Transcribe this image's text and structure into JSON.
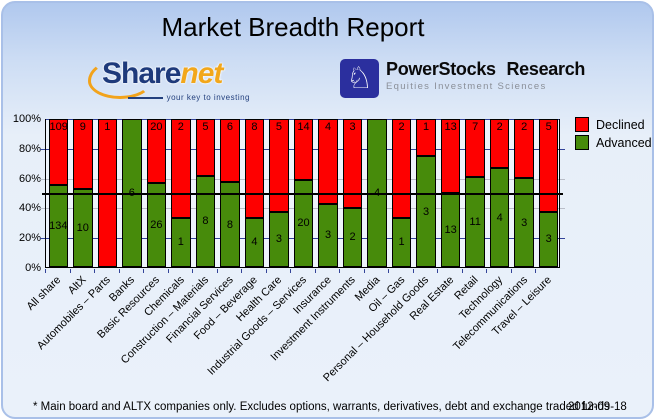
{
  "title": "Market Breadth Report",
  "logos": {
    "sharenet": {
      "word_part1": "Share",
      "word_part2": "net",
      "tagline": "your key to investing"
    },
    "powerstocks": {
      "icon": "knight-chess-piece",
      "icon_glyph": "♘",
      "title": "PowerStocks  Research",
      "subtitle": "Equities Investment Sciences"
    }
  },
  "chart_data": {
    "type": "bar",
    "stacked": true,
    "stacking": "percent",
    "title": "Market Breadth Report",
    "categories": [
      "All share",
      "AltX",
      "Automobiles – Parts",
      "Banks",
      "Basic Resources",
      "Chemicals",
      "Construction – Materials",
      "Financial Services",
      "Food – Beverage",
      "Health Care",
      "Industrial Goods – Services",
      "Insurance",
      "Investment Instruments",
      "Media",
      "Oil – Gas",
      "Personal – Household Goods",
      "Real Estate",
      "Retail",
      "Technology",
      "Telecommunications",
      "Travel – Leisure"
    ],
    "series": [
      {
        "name": "Declined",
        "color": "#fe0000",
        "values": [
          109,
          9,
          1,
          0,
          20,
          2,
          5,
          6,
          8,
          5,
          14,
          4,
          3,
          0,
          2,
          1,
          13,
          7,
          2,
          2,
          5
        ]
      },
      {
        "name": "Advanced",
        "color": "#478b0b",
        "values": [
          134,
          10,
          0,
          6,
          26,
          1,
          8,
          8,
          4,
          3,
          20,
          3,
          2,
          4,
          1,
          3,
          13,
          11,
          4,
          3,
          3
        ]
      }
    ],
    "y_ticks": [
      "100%",
      "80%",
      "60%",
      "40%",
      "20%",
      "0%"
    ],
    "ylim": [
      0,
      100
    ],
    "grid": true,
    "reference_line_percent": 50,
    "legend_position": "right"
  },
  "legend": {
    "declined_label": "Declined",
    "advanced_label": "Advanced"
  },
  "footer": {
    "note": "* Main board and ALTX companies only. Excludes options, warrants, derivatives, debt and exchange traded funds",
    "date": "2012-09-18"
  }
}
